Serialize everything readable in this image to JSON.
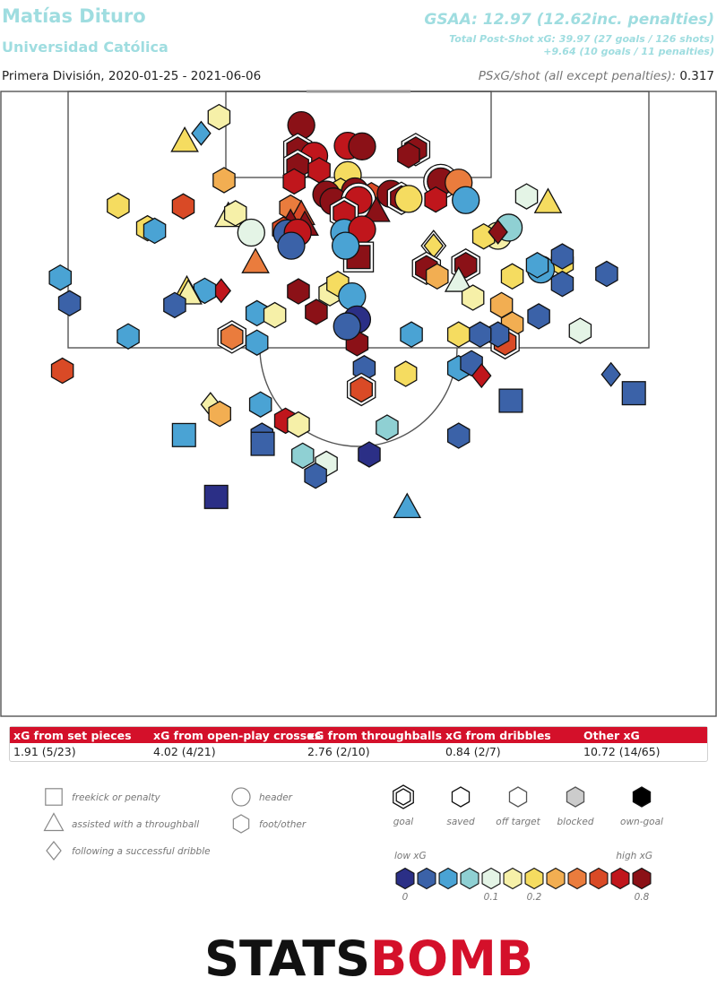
{
  "header": {
    "player": "Matías Dituro",
    "team": "Universidad Católica",
    "gsaa": "GSAA: 12.97 (12.62inc. penalties)",
    "total_psxg": "Total Post-Shot xG: 39.97 (27 goals / 126 shots)",
    "penalties": "+9.64 (10 goals / 11 penalties)",
    "competition": "Primera División, 2020-01-25 - 2021-06-06",
    "psxg_shot_label": "PSxG/shot (all except penalties):",
    "psxg_shot_value": "0.317"
  },
  "xg_table": {
    "headers": [
      "xG from set pieces",
      "xG from open-play crosses",
      "xG from throughballs",
      "xG from dribbles",
      "Other xG"
    ],
    "values": [
      "1.91 (5/23)",
      "4.02 (4/21)",
      "2.76 (2/10)",
      "0.84 (2/7)",
      "10.72 (14/65)"
    ],
    "header_color": "#d4102a"
  },
  "legend": {
    "shapes": [
      {
        "shape": "square",
        "label": "freekick or penalty"
      },
      {
        "shape": "triangle",
        "label": "assisted with a throughball"
      },
      {
        "shape": "diamond",
        "label": "following a successful dribble"
      },
      {
        "shape": "circle",
        "label": "header"
      },
      {
        "shape": "hexagon",
        "label": "foot/other"
      }
    ],
    "outcomes": [
      "goal",
      "saved",
      "off target",
      "blocked",
      "own-goal"
    ],
    "scale_low": "low xG",
    "scale_high": "high xG",
    "scale_ticks": [
      "0",
      "0.1",
      "0.2",
      "0.8"
    ],
    "palette": [
      "#2b2f86",
      "#3b62a8",
      "#4aa3d4",
      "#8fd0d3",
      "#e4f4e6",
      "#f6f0a8",
      "#f5dc60",
      "#f2ae52",
      "#ea7c3d",
      "#d94a26",
      "#c0161c",
      "#8b1117"
    ]
  },
  "brand": {
    "stats": "STATS",
    "bomb": "BOMB"
  },
  "chart_data": {
    "type": "scatter",
    "title": "Matías Dituro",
    "subtitle": "Universidad Católica",
    "coordinate_note": "pitch data units: x 0-100 across the pitch width, y = distance from goal line (0-100)",
    "xlim": [
      0,
      100
    ],
    "ylim": [
      0,
      100
    ],
    "shots": [
      {
        "x": 42,
        "y": 5.4,
        "shape": "circle",
        "xg": 11,
        "o": "saved"
      },
      {
        "x": 48.5,
        "y": 8.7,
        "shape": "circle",
        "xg": 10,
        "o": "saved"
      },
      {
        "x": 50.5,
        "y": 8.8,
        "shape": "circle",
        "xg": 11,
        "o": "saved"
      },
      {
        "x": 58,
        "y": 9.3,
        "shape": "hexagon",
        "xg": 11,
        "o": "goal"
      },
      {
        "x": 57,
        "y": 10.2,
        "shape": "hexagon",
        "xg": 11,
        "o": "saved"
      },
      {
        "x": 41.5,
        "y": 9.3,
        "shape": "hexagon",
        "xg": 11,
        "o": "goal"
      },
      {
        "x": 43.8,
        "y": 10.3,
        "shape": "circle",
        "xg": 10,
        "o": "saved"
      },
      {
        "x": 41.5,
        "y": 11.9,
        "shape": "hexagon",
        "xg": 11,
        "o": "goal"
      },
      {
        "x": 44.5,
        "y": 12.6,
        "shape": "hexagon",
        "xg": 10,
        "o": "saved"
      },
      {
        "x": 48.5,
        "y": 13.4,
        "shape": "circle",
        "xg": 6,
        "o": "saved"
      },
      {
        "x": 41,
        "y": 14.4,
        "shape": "hexagon",
        "xg": 10,
        "o": "saved"
      },
      {
        "x": 61.5,
        "y": 14.4,
        "shape": "circle",
        "xg": 11,
        "o": "goal"
      },
      {
        "x": 64,
        "y": 14.6,
        "shape": "circle",
        "xg": 8,
        "o": "saved"
      },
      {
        "x": 47.5,
        "y": 15.9,
        "shape": "hexagon",
        "xg": 6,
        "o": "saved"
      },
      {
        "x": 49.5,
        "y": 16,
        "shape": "circle",
        "xg": 11,
        "o": "saved"
      },
      {
        "x": 45.5,
        "y": 16.5,
        "shape": "circle",
        "xg": 11,
        "o": "saved"
      },
      {
        "x": 51.8,
        "y": 16.6,
        "shape": "hexagon",
        "xg": 9,
        "o": "saved"
      },
      {
        "x": 54.5,
        "y": 16.4,
        "shape": "circle",
        "xg": 11,
        "o": "saved"
      },
      {
        "x": 56,
        "y": 17.1,
        "shape": "hexagon",
        "xg": 11,
        "o": "goal"
      },
      {
        "x": 57,
        "y": 17.2,
        "shape": "circle",
        "xg": 6,
        "o": "saved"
      },
      {
        "x": 60.8,
        "y": 17.3,
        "shape": "hexagon",
        "xg": 10,
        "o": "saved"
      },
      {
        "x": 65,
        "y": 17.4,
        "shape": "circle",
        "xg": 2,
        "o": "saved"
      },
      {
        "x": 46.5,
        "y": 17.6,
        "shape": "circle",
        "xg": 11,
        "o": "saved"
      },
      {
        "x": 50,
        "y": 17.4,
        "shape": "circle",
        "xg": 10,
        "o": "goal"
      },
      {
        "x": 40.5,
        "y": 18.6,
        "shape": "hexagon",
        "xg": 8,
        "o": "saved"
      },
      {
        "x": 48,
        "y": 19.5,
        "shape": "hexagon",
        "xg": 10,
        "o": "goal"
      },
      {
        "x": 52.5,
        "y": 19.3,
        "shape": "triangle",
        "xg": 11,
        "o": "saved"
      },
      {
        "x": 42,
        "y": 19.8,
        "shape": "triangle",
        "xg": 9,
        "o": "saved"
      },
      {
        "x": 40.5,
        "y": 21.2,
        "shape": "triangle",
        "xg": 11,
        "o": "saved"
      },
      {
        "x": 42.5,
        "y": 21.5,
        "shape": "triangle",
        "xg": 11,
        "o": "saved"
      },
      {
        "x": 39.5,
        "y": 22.1,
        "shape": "hexagon",
        "xg": 9,
        "o": "saved"
      },
      {
        "x": 40,
        "y": 22.7,
        "shape": "circle",
        "xg": 1,
        "o": "saved"
      },
      {
        "x": 41.5,
        "y": 22.6,
        "shape": "circle",
        "xg": 10,
        "o": "saved"
      },
      {
        "x": 48,
        "y": 22.6,
        "shape": "circle",
        "xg": 2,
        "o": "saved"
      },
      {
        "x": 50.5,
        "y": 22.1,
        "shape": "circle",
        "xg": 10,
        "o": "saved"
      },
      {
        "x": 50,
        "y": 26.5,
        "shape": "square",
        "xg": 11,
        "o": "goal"
      },
      {
        "x": 60.5,
        "y": 24.7,
        "shape": "diamond",
        "xg": 6,
        "o": "goal"
      },
      {
        "x": 59.5,
        "y": 28.3,
        "shape": "hexagon",
        "xg": 11,
        "o": "goal"
      },
      {
        "x": 65,
        "y": 27.8,
        "shape": "hexagon",
        "xg": 11,
        "o": "goal"
      },
      {
        "x": 61,
        "y": 29.6,
        "shape": "hexagon",
        "xg": 7,
        "o": "saved"
      },
      {
        "x": 64,
        "y": 30.5,
        "shape": "triangle",
        "xg": 4,
        "o": "saved"
      },
      {
        "x": 66,
        "y": 33,
        "shape": "hexagon",
        "xg": 5,
        "o": "saved"
      },
      {
        "x": 69.5,
        "y": 23.1,
        "shape": "circle",
        "xg": 5,
        "o": "saved"
      },
      {
        "x": 67.5,
        "y": 23.2,
        "shape": "hexagon",
        "xg": 6,
        "o": "saved"
      },
      {
        "x": 71,
        "y": 21.8,
        "shape": "circle",
        "xg": 3,
        "o": "saved"
      },
      {
        "x": 69.5,
        "y": 22.5,
        "shape": "diamond",
        "xg": 11,
        "o": "saved"
      },
      {
        "x": 73.5,
        "y": 16.8,
        "shape": "hexagon",
        "xg": 4,
        "o": "saved"
      },
      {
        "x": 76.5,
        "y": 17.9,
        "shape": "triangle",
        "xg": 6,
        "o": "saved"
      },
      {
        "x": 78.5,
        "y": 27.5,
        "shape": "hexagon",
        "xg": 6,
        "o": "saved"
      },
      {
        "x": 75.5,
        "y": 28.5,
        "shape": "circle",
        "xg": 2,
        "o": "saved"
      },
      {
        "x": 75,
        "y": 27.8,
        "shape": "hexagon",
        "xg": 2,
        "o": "saved"
      },
      {
        "x": 78.5,
        "y": 26.4,
        "shape": "hexagon",
        "xg": 1,
        "o": "saved"
      },
      {
        "x": 78.5,
        "y": 30.8,
        "shape": "hexagon",
        "xg": 1,
        "o": "saved"
      },
      {
        "x": 84.7,
        "y": 29.2,
        "shape": "hexagon",
        "xg": 1,
        "o": "saved"
      },
      {
        "x": 71.5,
        "y": 29.6,
        "shape": "hexagon",
        "xg": 6,
        "o": "saved"
      },
      {
        "x": 75.2,
        "y": 36,
        "shape": "hexagon",
        "xg": 1,
        "o": "saved"
      },
      {
        "x": 70,
        "y": 34.2,
        "shape": "hexagon",
        "xg": 7,
        "o": "saved"
      },
      {
        "x": 71.5,
        "y": 37.3,
        "shape": "hexagon",
        "xg": 7,
        "o": "saved"
      },
      {
        "x": 70.5,
        "y": 40.2,
        "shape": "hexagon",
        "xg": 9,
        "o": "goal"
      },
      {
        "x": 69.5,
        "y": 38.9,
        "shape": "hexagon",
        "xg": 1,
        "o": "saved"
      },
      {
        "x": 67,
        "y": 38.9,
        "shape": "hexagon",
        "xg": 1,
        "o": "saved"
      },
      {
        "x": 64,
        "y": 38.9,
        "shape": "hexagon",
        "xg": 6,
        "o": "saved"
      },
      {
        "x": 81,
        "y": 38.3,
        "shape": "hexagon",
        "xg": 4,
        "o": "saved"
      },
      {
        "x": 57.4,
        "y": 38.9,
        "shape": "hexagon",
        "xg": 2,
        "o": "saved"
      },
      {
        "x": 64,
        "y": 44.3,
        "shape": "hexagon",
        "xg": 2,
        "o": "saved"
      },
      {
        "x": 65.8,
        "y": 43.5,
        "shape": "hexagon",
        "xg": 1,
        "o": "saved"
      },
      {
        "x": 67.2,
        "y": 45.5,
        "shape": "diamond",
        "xg": 10,
        "o": "saved"
      },
      {
        "x": 56.6,
        "y": 45.2,
        "shape": "hexagon",
        "xg": 6,
        "o": "saved"
      },
      {
        "x": 50.8,
        "y": 44.3,
        "shape": "hexagon",
        "xg": 1,
        "o": "saved"
      },
      {
        "x": 50.4,
        "y": 47.7,
        "shape": "hexagon",
        "xg": 9,
        "o": "goal"
      },
      {
        "x": 49.8,
        "y": 40.3,
        "shape": "hexagon",
        "xg": 11,
        "o": "saved"
      },
      {
        "x": 85.3,
        "y": 45.3,
        "shape": "diamond",
        "xg": 1,
        "o": "saved"
      },
      {
        "x": 88.5,
        "y": 48.3,
        "shape": "square",
        "xg": 1,
        "o": "saved"
      },
      {
        "x": 71.3,
        "y": 49.5,
        "shape": "square",
        "xg": 1,
        "o": "saved"
      },
      {
        "x": 64,
        "y": 55.1,
        "shape": "hexagon",
        "xg": 1,
        "o": "saved"
      },
      {
        "x": 54,
        "y": 53.8,
        "shape": "hexagon",
        "xg": 3,
        "o": "saved"
      },
      {
        "x": 51.5,
        "y": 58.1,
        "shape": "hexagon",
        "xg": 0,
        "o": "saved"
      },
      {
        "x": 56.8,
        "y": 66.7,
        "shape": "triangle",
        "xg": 2,
        "o": "saved"
      },
      {
        "x": 36.3,
        "y": 50.1,
        "shape": "hexagon",
        "xg": 2,
        "o": "saved"
      },
      {
        "x": 29.3,
        "y": 50.1,
        "shape": "diamond",
        "xg": 5,
        "o": "saved"
      },
      {
        "x": 30.6,
        "y": 51.6,
        "shape": "hexagon",
        "xg": 7,
        "o": "saved"
      },
      {
        "x": 25.6,
        "y": 55,
        "shape": "square",
        "xg": 2,
        "o": "saved"
      },
      {
        "x": 36.5,
        "y": 55.1,
        "shape": "hexagon",
        "xg": 1,
        "o": "saved"
      },
      {
        "x": 39.8,
        "y": 52.7,
        "shape": "hexagon",
        "xg": 10,
        "o": "saved"
      },
      {
        "x": 41.6,
        "y": 53.3,
        "shape": "hexagon",
        "xg": 5,
        "o": "saved"
      },
      {
        "x": 36.6,
        "y": 56.4,
        "shape": "square",
        "xg": 1,
        "o": "saved"
      },
      {
        "x": 42.2,
        "y": 58.3,
        "shape": "hexagon",
        "xg": 3,
        "o": "saved"
      },
      {
        "x": 45.5,
        "y": 59.6,
        "shape": "hexagon",
        "xg": 4,
        "o": "saved"
      },
      {
        "x": 44,
        "y": 61.5,
        "shape": "hexagon",
        "xg": 1,
        "o": "saved"
      },
      {
        "x": 30.1,
        "y": 64.9,
        "shape": "square",
        "xg": 0,
        "o": "saved"
      },
      {
        "x": 8.6,
        "y": 44.7,
        "shape": "hexagon",
        "xg": 9,
        "o": "saved"
      },
      {
        "x": 17.8,
        "y": 39.2,
        "shape": "hexagon",
        "xg": 2,
        "o": "saved"
      },
      {
        "x": 9.6,
        "y": 33.9,
        "shape": "hexagon",
        "xg": 1,
        "o": "saved"
      },
      {
        "x": 8.3,
        "y": 29.8,
        "shape": "hexagon",
        "xg": 2,
        "o": "saved"
      },
      {
        "x": 20.5,
        "y": 21.9,
        "shape": "hexagon",
        "xg": 6,
        "o": "saved"
      },
      {
        "x": 21.5,
        "y": 22.3,
        "shape": "hexagon",
        "xg": 2,
        "o": "saved"
      },
      {
        "x": 16.4,
        "y": 18.3,
        "shape": "hexagon",
        "xg": 6,
        "o": "saved"
      },
      {
        "x": 25.5,
        "y": 18.4,
        "shape": "hexagon",
        "xg": 9,
        "o": "saved"
      },
      {
        "x": 31.2,
        "y": 14.2,
        "shape": "hexagon",
        "xg": 7,
        "o": "saved"
      },
      {
        "x": 25.7,
        "y": 8.1,
        "shape": "triangle",
        "xg": 6,
        "o": "saved"
      },
      {
        "x": 28,
        "y": 6.7,
        "shape": "diamond",
        "xg": 2,
        "o": "saved"
      },
      {
        "x": 30.5,
        "y": 4.1,
        "shape": "hexagon",
        "xg": 5,
        "o": "saved"
      },
      {
        "x": 31.8,
        "y": 20.1,
        "shape": "triangle",
        "xg": 5,
        "o": "saved"
      },
      {
        "x": 32.8,
        "y": 19.5,
        "shape": "hexagon",
        "xg": 5,
        "o": "saved"
      },
      {
        "x": 35,
        "y": 22.6,
        "shape": "circle",
        "xg": 4,
        "o": "saved"
      },
      {
        "x": 35.6,
        "y": 27.5,
        "shape": "triangle",
        "xg": 8,
        "o": "saved"
      },
      {
        "x": 30.8,
        "y": 31.9,
        "shape": "diamond",
        "xg": 10,
        "o": "saved"
      },
      {
        "x": 28.5,
        "y": 31.9,
        "shape": "hexagon",
        "xg": 2,
        "o": "saved"
      },
      {
        "x": 26,
        "y": 31.9,
        "shape": "triangle",
        "xg": 6,
        "o": "saved"
      },
      {
        "x": 26.2,
        "y": 32.5,
        "shape": "triangle",
        "xg": 5,
        "o": "saved"
      },
      {
        "x": 24.3,
        "y": 34.2,
        "shape": "hexagon",
        "xg": 1,
        "o": "saved"
      },
      {
        "x": 35.8,
        "y": 35.5,
        "shape": "hexagon",
        "xg": 2,
        "o": "saved"
      },
      {
        "x": 38.3,
        "y": 35.8,
        "shape": "hexagon",
        "xg": 5,
        "o": "saved"
      },
      {
        "x": 32.3,
        "y": 39.3,
        "shape": "hexagon",
        "xg": 8,
        "o": "goal"
      },
      {
        "x": 35.8,
        "y": 40.2,
        "shape": "hexagon",
        "xg": 2,
        "o": "saved"
      },
      {
        "x": 41.6,
        "y": 32,
        "shape": "hexagon",
        "xg": 11,
        "o": "saved"
      },
      {
        "x": 44.1,
        "y": 35.3,
        "shape": "hexagon",
        "xg": 11,
        "o": "saved"
      },
      {
        "x": 46,
        "y": 32.3,
        "shape": "hexagon",
        "xg": 5,
        "o": "saved"
      },
      {
        "x": 47.1,
        "y": 30.8,
        "shape": "hexagon",
        "xg": 6,
        "o": "saved"
      },
      {
        "x": 49.1,
        "y": 32.8,
        "shape": "circle",
        "xg": 2,
        "o": "saved"
      },
      {
        "x": 49.8,
        "y": 36.5,
        "shape": "circle",
        "xg": 0,
        "o": "saved"
      },
      {
        "x": 48.4,
        "y": 37.6,
        "shape": "circle",
        "xg": 1,
        "o": "saved"
      },
      {
        "x": 40.6,
        "y": 24.7,
        "shape": "circle",
        "xg": 1,
        "o": "saved"
      },
      {
        "x": 48.2,
        "y": 24.7,
        "shape": "circle",
        "xg": 2,
        "o": "saved"
      }
    ]
  }
}
